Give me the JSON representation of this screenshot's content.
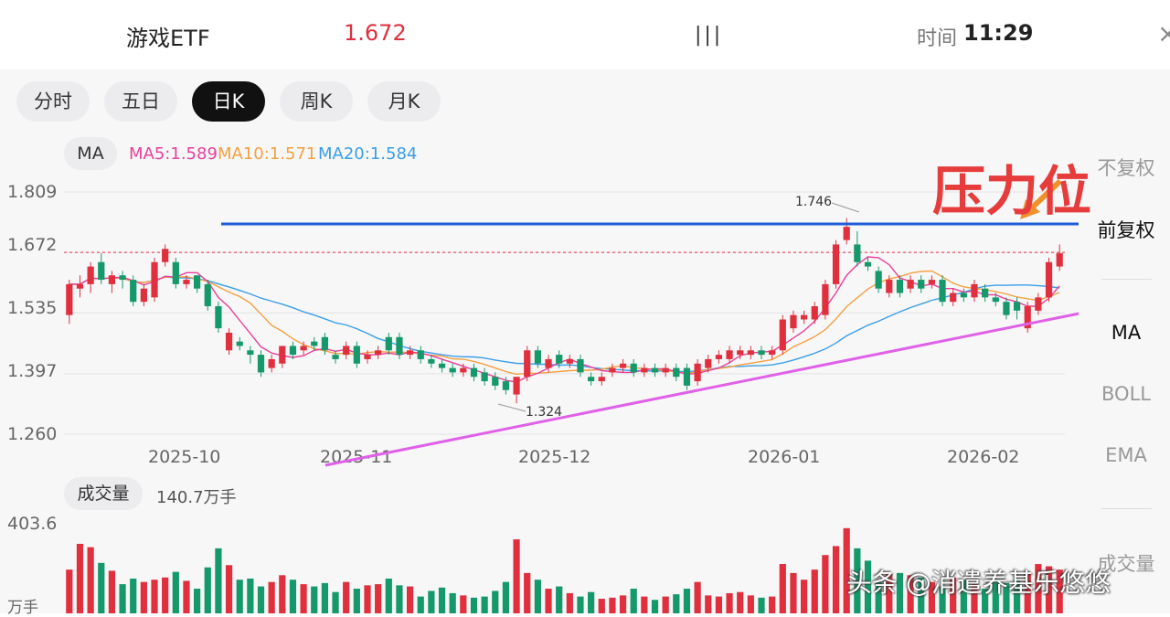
{
  "header": {
    "name": "游戏ETF",
    "price": "1.672",
    "mid_text": "| | |",
    "time_label": "时间",
    "time": "11:29",
    "close_glyph": "×"
  },
  "tabs": [
    {
      "label": "分时"
    },
    {
      "label": "五日"
    },
    {
      "label": "日K",
      "active": true
    },
    {
      "label": "周K"
    },
    {
      "label": "月K"
    }
  ],
  "ma": {
    "button": "MA",
    "ma5": "MA5:1.589",
    "ma10": "MA10:1.571",
    "ma20": "MA20:1.584"
  },
  "side": {
    "items": [
      "不复权",
      "前复权",
      "MA",
      "BOLL",
      "EMA",
      "成交量"
    ],
    "active": [
      "前复权",
      "MA"
    ]
  },
  "annotation": "压力位",
  "watermark": "头条 @消遣养基乐悠悠",
  "volume": {
    "button": "成交量",
    "value": "140.7万手",
    "y_top": "403.6",
    "y_unit": "万手"
  },
  "colors": {
    "up": "#e0303e",
    "down": "#15996b",
    "ma5": "#e8409a",
    "ma10": "#f5a040",
    "ma20": "#3a9ee8",
    "resistance": "#1f5ed6",
    "support": "#e060e8"
  },
  "chart_data": {
    "type": "candlestick",
    "y_ticks": [
      "1.809",
      "1.672",
      "1.535",
      "1.397",
      "1.260"
    ],
    "x_ticks": [
      "2025-10",
      "2025-11",
      "2025-12",
      "2026-01",
      "2026-02"
    ],
    "ylim": [
      1.26,
      1.809
    ],
    "current_price": 1.672,
    "high_label": "1.746",
    "low_label": "1.324",
    "candles": [
      [
        1.53,
        1.6,
        1.51,
        1.61
      ],
      [
        1.59,
        1.6,
        1.57,
        1.62
      ],
      [
        1.6,
        1.64,
        1.58,
        1.65
      ],
      [
        1.65,
        1.61,
        1.6,
        1.67
      ],
      [
        1.6,
        1.62,
        1.58,
        1.63
      ],
      [
        1.62,
        1.61,
        1.59,
        1.63
      ],
      [
        1.61,
        1.56,
        1.55,
        1.62
      ],
      [
        1.56,
        1.59,
        1.55,
        1.6
      ],
      [
        1.57,
        1.65,
        1.56,
        1.66
      ],
      [
        1.65,
        1.68,
        1.64,
        1.69
      ],
      [
        1.65,
        1.6,
        1.59,
        1.66
      ],
      [
        1.6,
        1.61,
        1.59,
        1.62
      ],
      [
        1.62,
        1.59,
        1.58,
        1.62
      ],
      [
        1.6,
        1.55,
        1.54,
        1.61
      ],
      [
        1.55,
        1.5,
        1.49,
        1.56
      ],
      [
        1.45,
        1.49,
        1.44,
        1.5
      ],
      [
        1.47,
        1.46,
        1.45,
        1.48
      ],
      [
        1.45,
        1.44,
        1.42,
        1.46
      ],
      [
        1.44,
        1.4,
        1.39,
        1.45
      ],
      [
        1.41,
        1.43,
        1.4,
        1.44
      ],
      [
        1.42,
        1.46,
        1.41,
        1.46
      ],
      [
        1.46,
        1.44,
        1.43,
        1.47
      ],
      [
        1.45,
        1.46,
        1.44,
        1.47
      ],
      [
        1.47,
        1.46,
        1.45,
        1.48
      ],
      [
        1.48,
        1.45,
        1.44,
        1.49
      ],
      [
        1.44,
        1.43,
        1.42,
        1.45
      ],
      [
        1.44,
        1.46,
        1.43,
        1.47
      ],
      [
        1.46,
        1.42,
        1.41,
        1.47
      ],
      [
        1.43,
        1.44,
        1.42,
        1.45
      ],
      [
        1.44,
        1.45,
        1.43,
        1.46
      ],
      [
        1.48,
        1.45,
        1.44,
        1.49
      ],
      [
        1.48,
        1.44,
        1.43,
        1.49
      ],
      [
        1.44,
        1.45,
        1.43,
        1.46
      ],
      [
        1.45,
        1.43,
        1.42,
        1.46
      ],
      [
        1.43,
        1.42,
        1.41,
        1.44
      ],
      [
        1.42,
        1.41,
        1.4,
        1.43
      ],
      [
        1.41,
        1.4,
        1.39,
        1.42
      ],
      [
        1.4,
        1.41,
        1.39,
        1.42
      ],
      [
        1.41,
        1.39,
        1.38,
        1.42
      ],
      [
        1.4,
        1.38,
        1.37,
        1.41
      ],
      [
        1.39,
        1.37,
        1.36,
        1.4
      ],
      [
        1.38,
        1.36,
        1.35,
        1.39
      ],
      [
        1.35,
        1.39,
        1.33,
        1.39
      ],
      [
        1.39,
        1.45,
        1.38,
        1.46
      ],
      [
        1.45,
        1.42,
        1.41,
        1.46
      ],
      [
        1.41,
        1.43,
        1.4,
        1.44
      ],
      [
        1.44,
        1.42,
        1.41,
        1.45
      ],
      [
        1.42,
        1.43,
        1.41,
        1.44
      ],
      [
        1.43,
        1.4,
        1.39,
        1.44
      ],
      [
        1.39,
        1.38,
        1.37,
        1.4
      ],
      [
        1.38,
        1.39,
        1.37,
        1.4
      ],
      [
        1.4,
        1.41,
        1.39,
        1.42
      ],
      [
        1.41,
        1.42,
        1.4,
        1.43
      ],
      [
        1.42,
        1.4,
        1.39,
        1.43
      ],
      [
        1.4,
        1.41,
        1.39,
        1.42
      ],
      [
        1.41,
        1.4,
        1.39,
        1.42
      ],
      [
        1.4,
        1.41,
        1.39,
        1.42
      ],
      [
        1.41,
        1.39,
        1.38,
        1.42
      ],
      [
        1.41,
        1.37,
        1.36,
        1.42
      ],
      [
        1.38,
        1.42,
        1.37,
        1.43
      ],
      [
        1.41,
        1.43,
        1.4,
        1.44
      ],
      [
        1.43,
        1.44,
        1.42,
        1.45
      ],
      [
        1.43,
        1.45,
        1.42,
        1.46
      ],
      [
        1.44,
        1.45,
        1.43,
        1.46
      ],
      [
        1.44,
        1.45,
        1.43,
        1.46
      ],
      [
        1.45,
        1.44,
        1.43,
        1.46
      ],
      [
        1.44,
        1.45,
        1.43,
        1.46
      ],
      [
        1.45,
        1.52,
        1.44,
        1.53
      ],
      [
        1.5,
        1.53,
        1.49,
        1.54
      ],
      [
        1.52,
        1.53,
        1.51,
        1.54
      ],
      [
        1.52,
        1.55,
        1.51,
        1.56
      ],
      [
        1.53,
        1.6,
        1.52,
        1.61
      ],
      [
        1.6,
        1.69,
        1.59,
        1.7
      ],
      [
        1.7,
        1.73,
        1.69,
        1.75
      ],
      [
        1.69,
        1.65,
        1.64,
        1.72
      ],
      [
        1.65,
        1.64,
        1.63,
        1.66
      ],
      [
        1.63,
        1.59,
        1.58,
        1.64
      ],
      [
        1.58,
        1.61,
        1.57,
        1.62
      ],
      [
        1.61,
        1.58,
        1.57,
        1.62
      ],
      [
        1.59,
        1.61,
        1.58,
        1.62
      ],
      [
        1.61,
        1.59,
        1.58,
        1.62
      ],
      [
        1.6,
        1.61,
        1.59,
        1.62
      ],
      [
        1.61,
        1.56,
        1.55,
        1.62
      ],
      [
        1.56,
        1.58,
        1.55,
        1.59
      ],
      [
        1.58,
        1.57,
        1.56,
        1.59
      ],
      [
        1.57,
        1.6,
        1.56,
        1.61
      ],
      [
        1.59,
        1.57,
        1.56,
        1.6
      ],
      [
        1.57,
        1.56,
        1.55,
        1.58
      ],
      [
        1.56,
        1.53,
        1.52,
        1.57
      ],
      [
        1.56,
        1.54,
        1.52,
        1.57
      ],
      [
        1.5,
        1.55,
        1.49,
        1.56
      ],
      [
        1.54,
        1.57,
        1.53,
        1.58
      ],
      [
        1.57,
        1.65,
        1.56,
        1.66
      ],
      [
        1.64,
        1.67,
        1.63,
        1.69
      ]
    ],
    "volumes": [
      195,
      310,
      295,
      225,
      190,
      130,
      155,
      140,
      150,
      160,
      185,
      145,
      110,
      205,
      290,
      215,
      150,
      155,
      120,
      140,
      170,
      150,
      130,
      120,
      135,
      95,
      140,
      110,
      125,
      130,
      155,
      125,
      120,
      75,
      100,
      115,
      90,
      80,
      70,
      75,
      100,
      140,
      330,
      180,
      150,
      110,
      120,
      90,
      75,
      95,
      65,
      70,
      80,
      110,
      75,
      60,
      75,
      85,
      110,
      140,
      80,
      75,
      90,
      95,
      80,
      70,
      75,
      220,
      180,
      150,
      195,
      260,
      300,
      380,
      290,
      235,
      140,
      175,
      180,
      170,
      160,
      140,
      120,
      160,
      150,
      130,
      110,
      145,
      135,
      150,
      180,
      220,
      210,
      195
    ]
  }
}
